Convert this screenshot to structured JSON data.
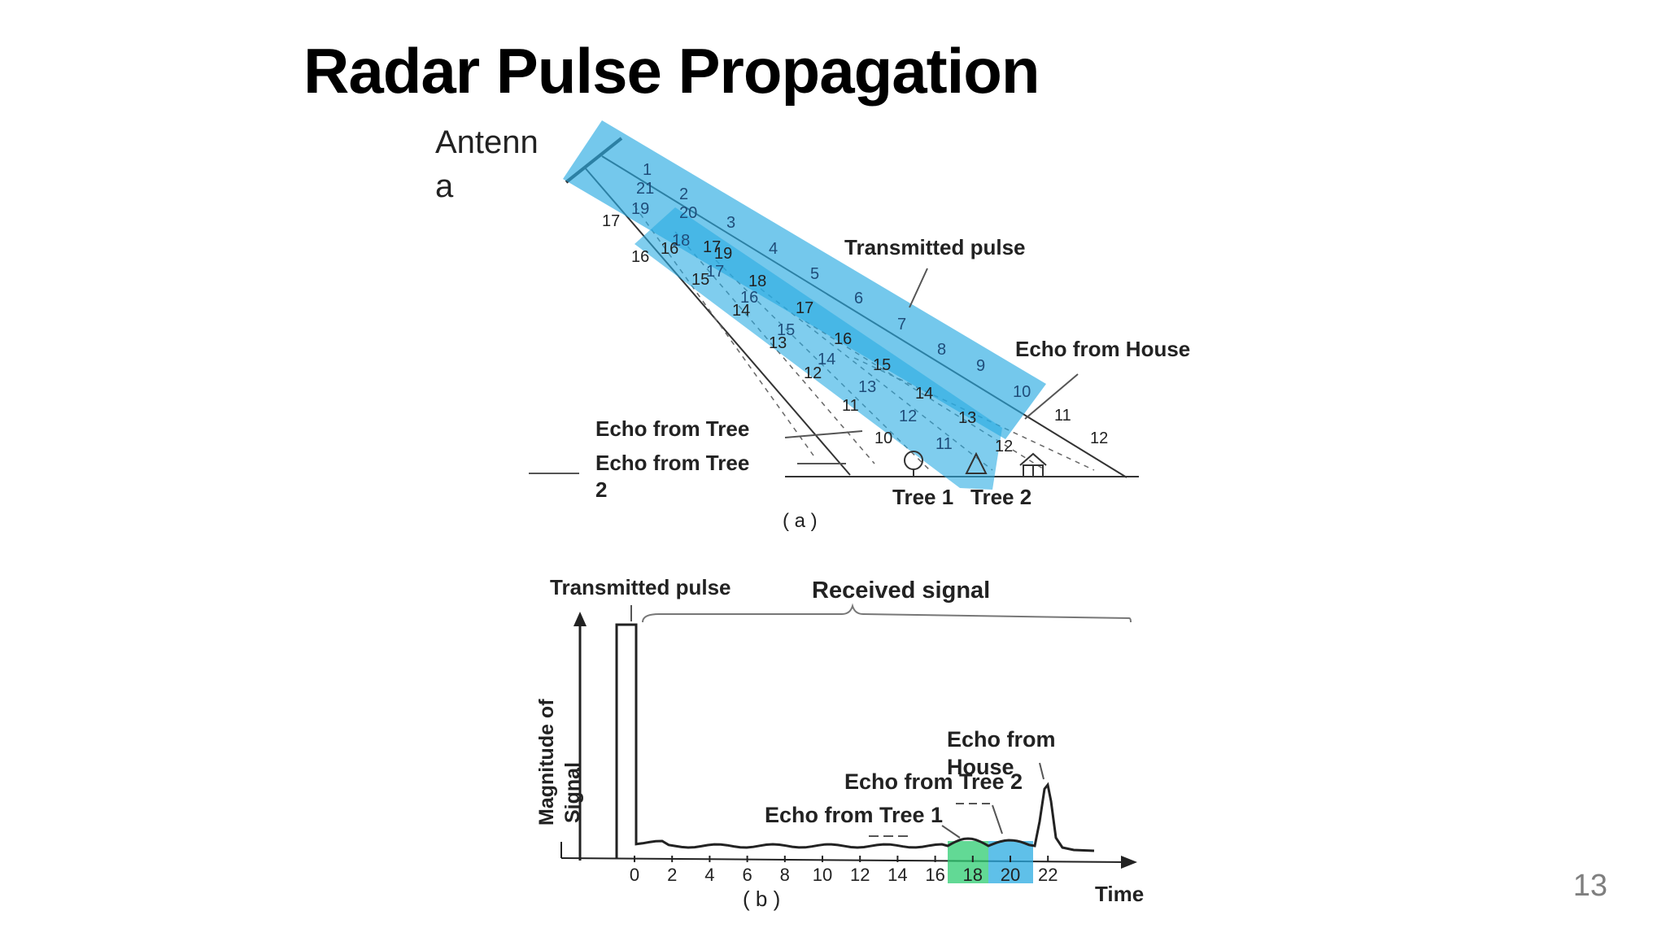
{
  "slide": {
    "title": "Radar Pulse Propagation",
    "page_number": "13"
  },
  "panel_a": {
    "antenna_label_line1": "Antenn",
    "antenna_label_line2": "a",
    "transmitted_pulse_label": "Transmitted pulse",
    "echo_house_label": "Echo from House",
    "echo_tree1_label": "Echo from Tree",
    "echo_tree2_label_line1": "Echo from Tree",
    "echo_tree2_label_line2": "2",
    "tree1_label": "Tree 1",
    "tree2_label": "Tree 2",
    "caption": "( a )",
    "pulse_numbers": [
      "1",
      "2",
      "3",
      "4",
      "5",
      "6",
      "7",
      "8",
      "9",
      "10",
      "11",
      "12"
    ],
    "tree1_echo_numbers": [
      "10",
      "11",
      "12",
      "13",
      "14",
      "15",
      "16",
      "17",
      "18",
      "19"
    ],
    "tree2_echo_numbers": [
      "11",
      "12",
      "13",
      "14",
      "15",
      "16",
      "17",
      "18",
      "19",
      "20",
      "21"
    ],
    "house_echo_numbers": [
      "12",
      "13",
      "14",
      "15",
      "16",
      "17"
    ],
    "left_edge_numbers": [
      "16",
      "17"
    ],
    "highlight_color": "#29abe2"
  },
  "panel_b": {
    "transmitted_pulse_label": "Transmitted pulse",
    "received_signal_label": "Received signal",
    "ylabel_line1": "Magnitude of",
    "ylabel_line2": "Signal",
    "xlabel": "Time",
    "x_ticks": [
      "0",
      "2",
      "4",
      "6",
      "8",
      "10",
      "12",
      "14",
      "16",
      "18",
      "20",
      "22"
    ],
    "echo_house_line1": "Echo from",
    "echo_house_line2": "House",
    "echo_tree2_label": "Echo from Tree 2",
    "echo_tree1_label": "Echo from Tree 1",
    "caption": "( b )",
    "green_highlight_color": "#2ecc71",
    "blue_highlight_color": "#29abe2"
  }
}
